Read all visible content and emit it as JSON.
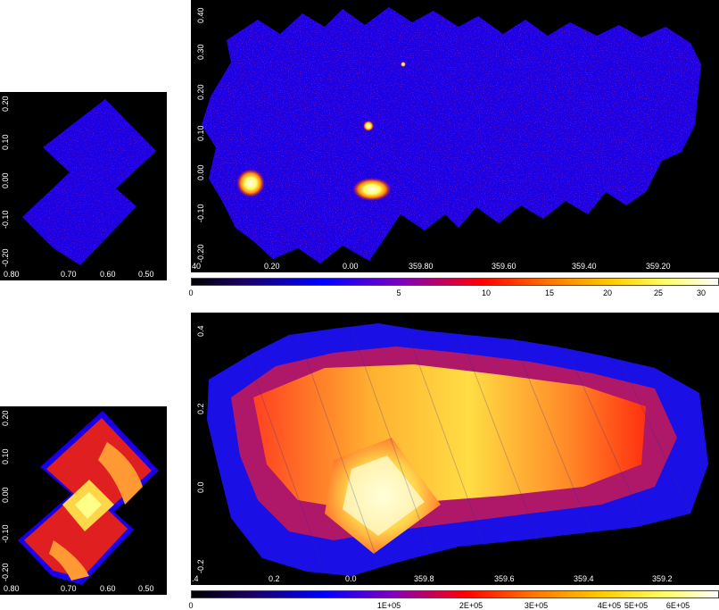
{
  "colors": {
    "background": "#000000",
    "colormap": [
      "#000000",
      "#1a0066",
      "#0000ff",
      "#6600cc",
      "#ff0000",
      "#ff8800",
      "#ffff00",
      "#ffffff"
    ]
  },
  "top_left": {
    "y_ticks": [
      "0.20",
      "0.10",
      "0.00",
      "-0.10",
      "-0.20"
    ],
    "x_ticks": [
      "0.80",
      "0.70",
      "0.60",
      "0.50"
    ]
  },
  "top_main": {
    "y_ticks": [
      "0.40",
      "0.30",
      "0.20",
      "0.10",
      "0.00",
      "-0.10",
      "-0.20"
    ],
    "x_ticks": [
      "40",
      "0.20",
      "0.00",
      "359.80",
      "359.60",
      "359.40",
      "359.20"
    ]
  },
  "top_colorbar": {
    "labels": [
      "0",
      "5",
      "10",
      "15",
      "20",
      "25",
      "30"
    ]
  },
  "bottom_left": {
    "y_ticks": [
      "0.20",
      "0.10",
      "0.00",
      "-0.10",
      "-0.20"
    ],
    "x_ticks": [
      "0.80",
      "0.70",
      "0.60",
      "0.50"
    ]
  },
  "bottom_main": {
    "y_ticks": [
      "0.4",
      "0.2",
      "0.0",
      "-0.2"
    ],
    "x_ticks": [
      ".4",
      "0.2",
      "0.0",
      "359.8",
      "359.6",
      "359.4",
      "359.2"
    ]
  },
  "bottom_colorbar": {
    "labels": [
      "0",
      "1E+05",
      "2E+05",
      "3E+05",
      "4E+05",
      "5E+05",
      "6E+05"
    ]
  }
}
